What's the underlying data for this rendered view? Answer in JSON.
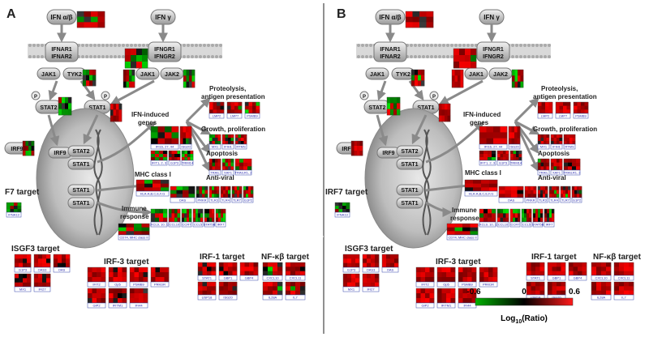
{
  "panels": [
    {
      "letter": "A",
      "ifn_ab": "IFN α/β",
      "ifn_g": "IFN γ",
      "ifnar": [
        "IFNAR1",
        "IFNAR2"
      ],
      "ifngr": [
        "IFNGR1",
        "IFNGR2"
      ],
      "kinases": [
        "JAK1",
        "TYK2",
        "JAK1",
        "JAK2"
      ],
      "stat2": "STAT2",
      "stat1": "STAT1",
      "irf9": "IRF9",
      "p": "P",
      "nucleus": [
        "IRF9",
        "STAT2",
        "STAT1",
        "STAT1",
        "STAT1"
      ],
      "categories": [
        "Proteolysis,",
        "antigen presentation",
        "IFN-induced",
        "genes",
        "Growth, proliferation",
        "Apoptosis",
        "MHC class I",
        "Anti-viral",
        "Immune",
        "response"
      ],
      "side_target": "F7 target",
      "side_gene": "IFNA13",
      "groups": [
        "ISGF3 target",
        "IRF-3 target",
        "IRF-1 target",
        "NF-κβ target"
      ]
    },
    {
      "letter": "B",
      "ifn_ab": "IFN α/β",
      "ifn_g": "IFN γ",
      "ifnar": [
        "IFNAR1",
        "IFNAR2"
      ],
      "ifngr": [
        "IFNGR1",
        "IFNGR2"
      ],
      "kinases": [
        "JAK1",
        "TYK2",
        "JAK1",
        "JAK2"
      ],
      "stat2": "STAT2",
      "stat1": "STAT1",
      "irf9": "IRF9",
      "p": "P",
      "nucleus": [
        "IRF9",
        "STAT2",
        "STAT1",
        "STAT1",
        "STAT1"
      ],
      "categories": [
        "Proteolysis,",
        "antigen presentation",
        "IFN-induced",
        "genes",
        "Growth, proliferation",
        "Apoptosis",
        "MHC class I",
        "Anti-viral",
        "Immune",
        "response"
      ],
      "side_target": "IRF7 target",
      "side_gene": "IFNA13",
      "groups": [
        "ISGF3 target",
        "IRF-3 target",
        "IRF-1 target",
        "NF-κβ target"
      ]
    }
  ],
  "genes": {
    "proteo": [
      "LMP2",
      "LMP7",
      "PSMB9"
    ],
    "ifn_induced": [
      "IFI16, 27, 44",
      "ISG20",
      "IFIT1, 2, 3",
      "G1P3",
      "TRIM14"
    ],
    "growth": [
      "MX1",
      "IFIH1",
      "RTMS"
    ],
    "apoptosis": [
      "TRAIL",
      "XAF1",
      "TRAILR1, 2"
    ],
    "mhc": [
      "HLA-A,B,C,E,F,G"
    ],
    "antiviral": [
      "OAS",
      "PRKR",
      "TLR3",
      "TLR4",
      "TLR7",
      "G1P2"
    ],
    "immune": [
      "CXCL9, 10, 11",
      "CCL10",
      "CCR7",
      "CCL5",
      "STAT5B",
      "IRF7"
    ],
    "immune2": [
      "CD74, MHC class II"
    ],
    "isgf3": [
      "G1P3",
      "OAS3",
      "OAS",
      "MX1",
      "IFI27"
    ],
    "irf3": [
      "IFIT2",
      "Op5",
      "PSMB9",
      "PRKDR",
      "GIP2",
      "IFITM1",
      "IFI44"
    ],
    "irf1": [
      "STAT1",
      "GBP1",
      "GBP4",
      "USP18",
      "ISG20"
    ],
    "nfkb": [
      "CXCL10",
      "CXCL11",
      "IL28A",
      "IL7"
    ]
  },
  "legend": {
    "min": "-0.6",
    "mid": "0",
    "max": "0.6",
    "label": "Log10(Ratio)",
    "label_base": "Log",
    "label_sub": "10",
    "label_tail": "(Ratio)",
    "colors": [
      "#00b000",
      "#000000",
      "#ff1a1a"
    ]
  }
}
